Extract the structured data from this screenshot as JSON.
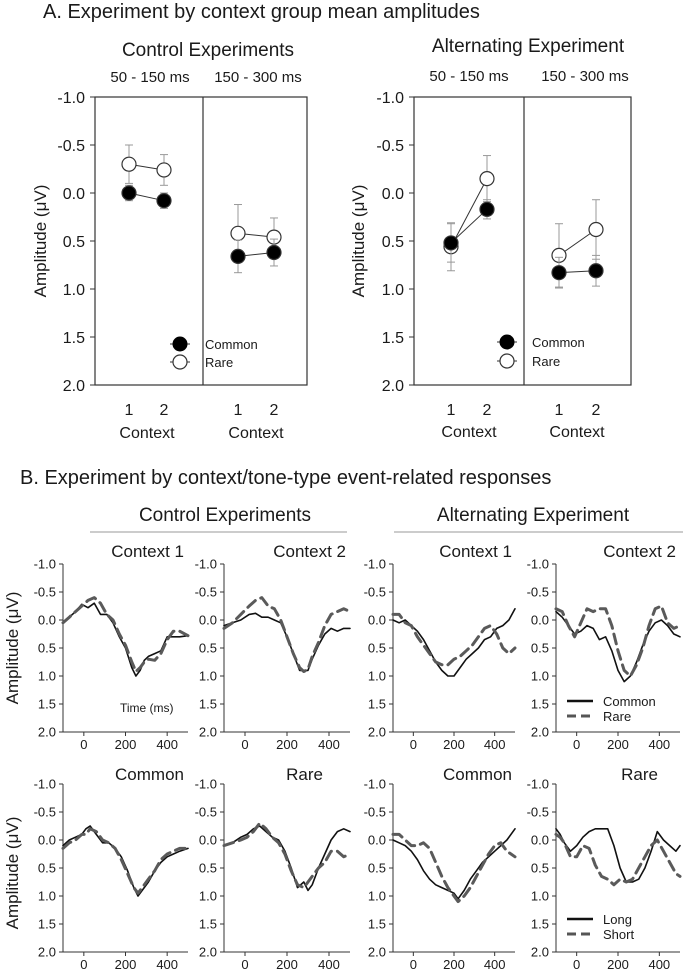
{
  "section_a": {
    "title": "A. Experiment by context group mean amplitudes",
    "ylabel": "Amplitude (μV)",
    "xlabel": "Context",
    "y_ticks": [
      "-1.0",
      "-0.5",
      "0.0",
      "0.5",
      "1.0",
      "1.5",
      "2.0"
    ],
    "x_ticks": [
      "1",
      "2"
    ],
    "legend": {
      "common": "Common",
      "rare": "Rare"
    }
  },
  "section_b": {
    "title": "B. Experiment by context/tone-type event-related responses",
    "ylabel": "Amplitude (μV)",
    "y_ticks": [
      "-1.0",
      "-0.5",
      "0.0",
      "0.5",
      "1.0",
      "1.5",
      "2.0"
    ],
    "x_ticks": [
      "0",
      "200",
      "400"
    ],
    "time_label": "Time (ms)",
    "legend_tone": {
      "common": "Common",
      "rare": "Rare"
    },
    "legend_context": {
      "long": "Long",
      "short": "Short"
    },
    "group_headers": [
      "Control Experiments",
      "Alternating Experiment"
    ]
  },
  "chart_data": [
    {
      "type": "scatter",
      "title": "Control Experiments",
      "xlabel": "Context",
      "ylabel": "Amplitude (μV)",
      "ylim": [
        2.0,
        -1.0
      ],
      "y_inverted": true,
      "windows": [
        {
          "label": "50 - 150 ms",
          "x": [
            1,
            2
          ],
          "series": [
            {
              "name": "Common",
              "values": [
                0.0,
                0.08
              ],
              "err": [
                0.08,
                0.08
              ]
            },
            {
              "name": "Rare",
              "values": [
                -0.3,
                -0.24
              ],
              "err": [
                0.2,
                0.16
              ]
            }
          ]
        },
        {
          "label": "150 - 300 ms",
          "x": [
            1,
            2
          ],
          "series": [
            {
              "name": "Common",
              "values": [
                0.66,
                0.62
              ],
              "err": [
                0.17,
                0.14
              ]
            },
            {
              "name": "Rare",
              "values": [
                0.42,
                0.46
              ],
              "err": [
                0.3,
                0.2
              ]
            }
          ]
        }
      ],
      "legend": "bottom-right"
    },
    {
      "type": "scatter",
      "title": "Alternating Experiment",
      "xlabel": "Context",
      "ylabel": "Amplitude (μV)",
      "ylim": [
        2.0,
        -1.0
      ],
      "y_inverted": true,
      "windows": [
        {
          "label": "50 - 150 ms",
          "x": [
            1,
            2
          ],
          "series": [
            {
              "name": "Common",
              "values": [
                0.52,
                0.17
              ],
              "err": [
                0.2,
                0.1
              ]
            },
            {
              "name": "Rare",
              "values": [
                0.56,
                -0.15
              ],
              "err": [
                0.25,
                0.24
              ]
            }
          ]
        },
        {
          "label": "150 - 300 ms",
          "x": [
            1,
            2
          ],
          "series": [
            {
              "name": "Common",
              "values": [
                0.83,
                0.81
              ],
              "err": [
                0.16,
                0.16
              ]
            },
            {
              "name": "Rare",
              "values": [
                0.65,
                0.38
              ],
              "err": [
                0.33,
                0.31
              ]
            }
          ]
        }
      ],
      "legend": "bottom-right"
    },
    {
      "type": "line",
      "title": "Context 1",
      "group": "Control Experiments",
      "ylim": [
        2.0,
        -1.0
      ],
      "xlim": [
        -100,
        500
      ],
      "series": [
        {
          "name": "Common",
          "style": "solid",
          "x": [
            -100,
            -70,
            -40,
            -10,
            20,
            50,
            80,
            110,
            140,
            170,
            200,
            230,
            250,
            270,
            290,
            310,
            340,
            370,
            400,
            430,
            460,
            500
          ],
          "y": [
            0.05,
            -0.05,
            -0.15,
            -0.28,
            -0.22,
            -0.3,
            -0.1,
            -0.1,
            0.05,
            0.3,
            0.5,
            0.85,
            1.0,
            0.9,
            0.72,
            0.65,
            0.6,
            0.55,
            0.3,
            0.3,
            0.3,
            0.28
          ]
        },
        {
          "name": "Rare",
          "style": "dashed",
          "x": [
            -100,
            -70,
            -40,
            -10,
            20,
            50,
            80,
            110,
            140,
            170,
            200,
            230,
            250,
            270,
            290,
            310,
            340,
            370,
            400,
            430,
            460,
            500
          ],
          "y": [
            0.05,
            -0.05,
            -0.15,
            -0.25,
            -0.35,
            -0.4,
            -0.3,
            -0.1,
            0.0,
            0.25,
            0.45,
            0.75,
            0.92,
            0.85,
            0.75,
            0.7,
            0.72,
            0.6,
            0.35,
            0.2,
            0.2,
            0.28
          ]
        }
      ]
    },
    {
      "type": "line",
      "title": "Context 2",
      "group": "Control Experiments",
      "ylim": [
        2.0,
        -1.0
      ],
      "xlim": [
        -100,
        500
      ],
      "series": [
        {
          "name": "Common",
          "style": "solid",
          "x": [
            -100,
            -60,
            -20,
            20,
            50,
            80,
            110,
            140,
            170,
            200,
            230,
            260,
            280,
            300,
            320,
            350,
            380,
            410,
            440,
            470,
            500
          ],
          "y": [
            0.1,
            0.05,
            0.0,
            -0.1,
            -0.12,
            -0.05,
            -0.05,
            0.0,
            0.05,
            0.3,
            0.6,
            0.9,
            0.9,
            0.9,
            0.7,
            0.45,
            0.25,
            0.15,
            0.2,
            0.15,
            0.15
          ]
        },
        {
          "name": "Rare",
          "style": "dashed",
          "x": [
            -100,
            -60,
            -20,
            20,
            50,
            80,
            110,
            140,
            170,
            200,
            230,
            260,
            280,
            300,
            320,
            350,
            380,
            410,
            440,
            470,
            500
          ],
          "y": [
            0.15,
            0.05,
            -0.1,
            -0.25,
            -0.35,
            -0.4,
            -0.25,
            -0.2,
            0.0,
            0.3,
            0.6,
            0.85,
            0.92,
            0.88,
            0.65,
            0.4,
            0.1,
            -0.1,
            -0.15,
            -0.2,
            -0.15
          ]
        }
      ]
    },
    {
      "type": "line",
      "title": "Context 1",
      "group": "Alternating Experiment",
      "ylim": [
        2.0,
        -1.0
      ],
      "xlim": [
        -100,
        500
      ],
      "series": [
        {
          "name": "Common",
          "style": "solid",
          "x": [
            -100,
            -70,
            -40,
            -10,
            20,
            50,
            80,
            110,
            140,
            170,
            200,
            230,
            260,
            290,
            320,
            350,
            380,
            410,
            440,
            470,
            500
          ],
          "y": [
            0.0,
            0.05,
            0.0,
            0.1,
            0.2,
            0.35,
            0.55,
            0.75,
            0.9,
            1.0,
            1.0,
            0.85,
            0.7,
            0.6,
            0.5,
            0.35,
            0.3,
            0.15,
            0.1,
            0.0,
            -0.2
          ]
        },
        {
          "name": "Rare",
          "style": "dashed",
          "x": [
            -100,
            -70,
            -40,
            -10,
            20,
            50,
            80,
            110,
            140,
            170,
            200,
            230,
            260,
            290,
            320,
            350,
            380,
            410,
            440,
            470,
            500
          ],
          "y": [
            -0.1,
            -0.1,
            0.05,
            0.1,
            0.3,
            0.45,
            0.6,
            0.75,
            0.8,
            0.8,
            0.7,
            0.65,
            0.55,
            0.45,
            0.3,
            0.15,
            0.1,
            0.25,
            0.5,
            0.6,
            0.5
          ]
        }
      ]
    },
    {
      "type": "line",
      "title": "Context 2",
      "group": "Alternating Experiment",
      "ylim": [
        2.0,
        -1.0
      ],
      "xlim": [
        -100,
        500
      ],
      "series": [
        {
          "name": "Common",
          "style": "solid",
          "x": [
            -100,
            -70,
            -40,
            -10,
            20,
            50,
            80,
            110,
            140,
            170,
            200,
            230,
            260,
            290,
            320,
            350,
            380,
            410,
            440,
            470,
            500
          ],
          "y": [
            -0.15,
            -0.05,
            0.1,
            0.25,
            0.2,
            0.1,
            0.15,
            0.35,
            0.3,
            0.55,
            0.9,
            1.1,
            1.0,
            0.75,
            0.45,
            0.2,
            0.05,
            0.0,
            0.1,
            0.25,
            0.3
          ]
        },
        {
          "name": "Rare",
          "style": "dashed",
          "x": [
            -100,
            -70,
            -40,
            -10,
            20,
            50,
            80,
            110,
            140,
            170,
            200,
            230,
            260,
            290,
            320,
            350,
            380,
            410,
            440,
            470,
            500
          ],
          "y": [
            -0.2,
            -0.15,
            0.1,
            0.3,
            0.05,
            -0.2,
            -0.15,
            -0.2,
            -0.2,
            0.1,
            0.55,
            0.9,
            1.0,
            0.8,
            0.5,
            0.1,
            -0.2,
            -0.25,
            0.05,
            0.15,
            0.1
          ]
        }
      ]
    },
    {
      "type": "line",
      "title": "Common",
      "group": "Control Experiments",
      "ylim": [
        2.0,
        -1.0
      ],
      "xlim": [
        -100,
        500
      ],
      "series": [
        {
          "name": "Long",
          "style": "solid",
          "x": [
            -100,
            -70,
            -40,
            -10,
            10,
            30,
            60,
            90,
            120,
            150,
            180,
            210,
            240,
            260,
            280,
            310,
            340,
            370,
            400,
            430,
            460,
            500
          ],
          "y": [
            0.1,
            0.0,
            -0.05,
            -0.1,
            -0.2,
            -0.25,
            -0.1,
            0.05,
            0.05,
            0.15,
            0.3,
            0.55,
            0.85,
            1.0,
            0.9,
            0.75,
            0.55,
            0.4,
            0.3,
            0.25,
            0.2,
            0.15
          ]
        },
        {
          "name": "Short",
          "style": "dashed",
          "x": [
            -100,
            -70,
            -40,
            -10,
            10,
            30,
            60,
            90,
            120,
            150,
            180,
            210,
            240,
            260,
            280,
            310,
            340,
            370,
            400,
            430,
            460,
            500
          ],
          "y": [
            0.15,
            0.05,
            0.0,
            -0.1,
            -0.1,
            -0.2,
            -0.15,
            0.0,
            0.05,
            0.15,
            0.35,
            0.6,
            0.85,
            0.95,
            0.85,
            0.7,
            0.55,
            0.35,
            0.25,
            0.2,
            0.15,
            0.15
          ]
        }
      ]
    },
    {
      "type": "line",
      "title": "Rare",
      "group": "Control Experiments",
      "ylim": [
        2.0,
        -1.0
      ],
      "xlim": [
        -100,
        500
      ],
      "series": [
        {
          "name": "Long",
          "style": "solid",
          "x": [
            -100,
            -60,
            -20,
            10,
            40,
            70,
            100,
            130,
            160,
            190,
            220,
            250,
            280,
            300,
            320,
            350,
            380,
            410,
            440,
            470,
            500
          ],
          "y": [
            0.1,
            0.05,
            -0.05,
            -0.1,
            -0.2,
            -0.25,
            -0.15,
            -0.05,
            0.0,
            0.2,
            0.5,
            0.85,
            0.75,
            0.9,
            0.8,
            0.5,
            0.25,
            0.0,
            -0.15,
            -0.2,
            -0.15
          ]
        },
        {
          "name": "Short",
          "style": "dashed",
          "x": [
            -100,
            -60,
            -20,
            10,
            40,
            70,
            100,
            130,
            160,
            190,
            220,
            250,
            280,
            300,
            320,
            350,
            380,
            410,
            440,
            470,
            500
          ],
          "y": [
            0.1,
            0.05,
            0.0,
            -0.05,
            -0.15,
            -0.3,
            -0.2,
            -0.05,
            0.05,
            0.25,
            0.55,
            0.8,
            0.85,
            0.75,
            0.65,
            0.5,
            0.4,
            0.2,
            0.2,
            0.3,
            0.25
          ]
        }
      ]
    },
    {
      "type": "line",
      "title": "Common",
      "group": "Alternating Experiment",
      "ylim": [
        2.0,
        -1.0
      ],
      "xlim": [
        -100,
        500
      ],
      "series": [
        {
          "name": "Long",
          "style": "solid",
          "x": [
            -100,
            -70,
            -40,
            -10,
            20,
            50,
            80,
            110,
            140,
            170,
            200,
            220,
            250,
            280,
            310,
            340,
            370,
            400,
            430,
            460,
            500
          ],
          "y": [
            0.0,
            0.05,
            0.1,
            0.2,
            0.35,
            0.55,
            0.7,
            0.8,
            0.85,
            0.9,
            0.95,
            1.05,
            0.9,
            0.7,
            0.55,
            0.4,
            0.3,
            0.2,
            0.1,
            0.0,
            -0.2
          ]
        },
        {
          "name": "Short",
          "style": "dashed",
          "x": [
            -100,
            -70,
            -40,
            -10,
            20,
            50,
            80,
            110,
            140,
            170,
            200,
            220,
            250,
            280,
            310,
            340,
            370,
            400,
            430,
            460,
            500
          ],
          "y": [
            -0.1,
            -0.1,
            0.0,
            0.1,
            0.1,
            0.05,
            0.15,
            0.4,
            0.65,
            0.85,
            1.0,
            1.1,
            1.0,
            0.85,
            0.65,
            0.45,
            0.25,
            0.1,
            0.05,
            0.2,
            0.3
          ]
        }
      ]
    },
    {
      "type": "line",
      "title": "Rare",
      "group": "Alternating Experiment",
      "ylim": [
        2.0,
        -1.0
      ],
      "xlim": [
        -100,
        500
      ],
      "series": [
        {
          "name": "Long",
          "style": "solid",
          "x": [
            -100,
            -80,
            -60,
            -30,
            0,
            30,
            60,
            90,
            120,
            150,
            180,
            210,
            240,
            270,
            300,
            330,
            360,
            390,
            420,
            450,
            480,
            500
          ],
          "y": [
            -0.2,
            -0.1,
            0.05,
            0.2,
            0.1,
            -0.05,
            -0.15,
            -0.2,
            -0.2,
            -0.2,
            0.1,
            0.5,
            0.75,
            0.75,
            0.7,
            0.5,
            0.2,
            -0.15,
            0.0,
            0.1,
            0.2,
            0.1
          ]
        },
        {
          "name": "Short",
          "style": "dashed",
          "x": [
            -100,
            -80,
            -60,
            -30,
            0,
            30,
            60,
            90,
            120,
            150,
            180,
            210,
            240,
            270,
            300,
            330,
            360,
            390,
            420,
            450,
            480,
            500
          ],
          "y": [
            -0.1,
            -0.05,
            0.05,
            0.3,
            0.3,
            0.1,
            0.15,
            0.45,
            0.65,
            0.7,
            0.8,
            0.7,
            0.75,
            0.7,
            0.5,
            0.3,
            0.1,
            0.0,
            0.2,
            0.4,
            0.6,
            0.65
          ]
        }
      ]
    }
  ]
}
